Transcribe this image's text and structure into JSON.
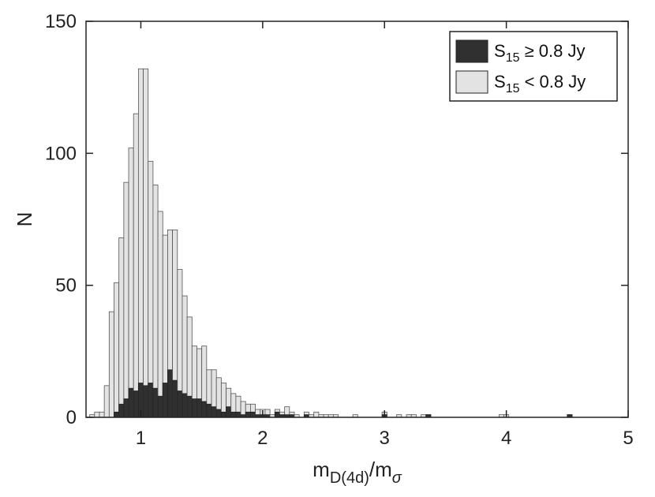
{
  "chart_data": {
    "type": "bar",
    "title": "",
    "xlabel": {
      "main": "m",
      "sub1": "D(4d)",
      "slash": "/m",
      "sub2": "σ"
    },
    "ylabel": "N",
    "xlim": [
      0.55,
      5.0
    ],
    "ylim": [
      0,
      150
    ],
    "xticks": [
      "1",
      "2",
      "3",
      "4",
      "5"
    ],
    "xtick_values": [
      1,
      2,
      3,
      4,
      5
    ],
    "yticks": [
      "0",
      "50",
      "100",
      "150"
    ],
    "ytick_values": [
      0,
      50,
      100,
      150
    ],
    "grid": false,
    "legend_position": "top-right",
    "bin_width": 0.04,
    "colors": {
      "bright": "#303030",
      "faint": "#e3e3e3",
      "edge": "#555555"
    },
    "x": [
      0.6,
      0.64,
      0.68,
      0.72,
      0.76,
      0.8,
      0.84,
      0.88,
      0.92,
      0.96,
      1.0,
      1.04,
      1.08,
      1.12,
      1.16,
      1.2,
      1.24,
      1.28,
      1.32,
      1.36,
      1.4,
      1.44,
      1.48,
      1.52,
      1.56,
      1.6,
      1.64,
      1.68,
      1.72,
      1.76,
      1.8,
      1.84,
      1.88,
      1.92,
      1.96,
      2.0,
      2.04,
      2.08,
      2.12,
      2.16,
      2.2,
      2.24,
      2.28,
      2.32,
      2.36,
      2.4,
      2.44,
      2.48,
      2.52,
      2.56,
      2.6,
      2.64,
      2.68,
      2.72,
      2.76,
      2.8,
      2.84,
      2.88,
      2.92,
      2.96,
      3.0,
      3.04,
      3.08,
      3.12,
      3.16,
      3.2,
      3.24,
      3.28,
      3.32,
      3.36,
      3.4,
      3.44,
      3.48,
      3.52,
      3.56,
      3.6,
      3.64,
      3.68,
      3.72,
      3.76,
      3.8,
      3.84,
      3.88,
      3.92,
      3.96,
      4.0,
      4.04,
      4.08,
      4.12,
      4.16,
      4.2,
      4.24,
      4.28,
      4.32,
      4.36,
      4.4,
      4.44,
      4.48,
      4.52,
      4.56
    ],
    "series": [
      {
        "name": "S15 ≥ 0.8 Jy",
        "legend": {
          "main": "S",
          "sub": "15",
          "rest": " ≥ 0.8 Jy"
        },
        "values": [
          0,
          0,
          0,
          0,
          0,
          2,
          5,
          7,
          11,
          10,
          13,
          12,
          13,
          11,
          8,
          13,
          18,
          14,
          10,
          9,
          8,
          7,
          7,
          6,
          5,
          4,
          3,
          2,
          4,
          2,
          2,
          1,
          2,
          2,
          1,
          1,
          1,
          0,
          2,
          1,
          1,
          1,
          0,
          0,
          1,
          0,
          0,
          0,
          0,
          0,
          0,
          0,
          0,
          0,
          0,
          0,
          0,
          0,
          0,
          0,
          1,
          0,
          0,
          0,
          0,
          0,
          0,
          0,
          0,
          1,
          0,
          0,
          0,
          0,
          0,
          0,
          0,
          0,
          0,
          0,
          0,
          0,
          0,
          0,
          0,
          0,
          0,
          0,
          0,
          0,
          0,
          0,
          0,
          0,
          0,
          0,
          0,
          0,
          1,
          0
        ]
      },
      {
        "name": "S15 < 0.8 Jy",
        "legend": {
          "main": "S",
          "sub": "15",
          "rest": " < 0.8 Jy"
        },
        "values": [
          1,
          2,
          2,
          12,
          40,
          49,
          63,
          82,
          91,
          105,
          119,
          120,
          84,
          77,
          70,
          56,
          53,
          57,
          46,
          37,
          30,
          20,
          19,
          21,
          13,
          14,
          12,
          11,
          7,
          7,
          6,
          5,
          3,
          3,
          2,
          2,
          2,
          1,
          1,
          1,
          3,
          1,
          1,
          0,
          1,
          1,
          2,
          1,
          1,
          1,
          1,
          0,
          0,
          0,
          1,
          0,
          0,
          0,
          0,
          0,
          1,
          0,
          0,
          1,
          0,
          1,
          1,
          0,
          1,
          0,
          0,
          0,
          0,
          0,
          0,
          0,
          0,
          0,
          0,
          0,
          0,
          0,
          0,
          0,
          1,
          1,
          0,
          0,
          0,
          0,
          0,
          0,
          0,
          0,
          0,
          0,
          0,
          0,
          0,
          0
        ]
      }
    ]
  }
}
